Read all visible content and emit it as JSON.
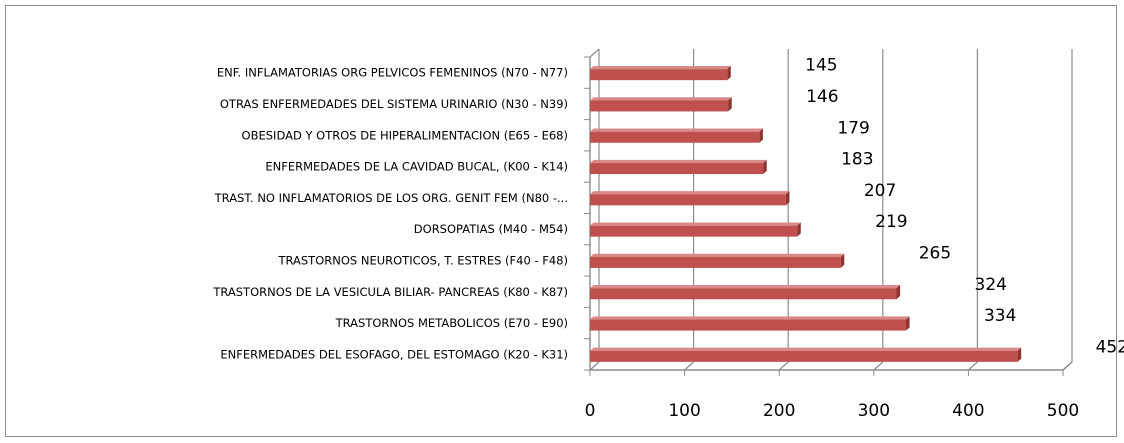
{
  "chart_data": {
    "type": "bar",
    "orientation": "horizontal",
    "categories": [
      "ENF. INFLAMATORIAS  ORG PELVICOS FEMENINOS (N70 - N77)",
      "OTRAS ENFERMEDADES DEL SISTEMA URINARIO (N30 - N39)",
      "OBESIDAD Y OTROS DE HIPERALIMENTACION (E65 - E68)",
      "ENFERMEDADES DE LA CAVIDAD BUCAL, (K00 - K14)",
      "TRAST. NO INFLAMATORIOS DE LOS ORG. GENIT FEM (N80 -...",
      "DORSOPATIAS (M40 - M54)",
      "TRASTORNOS NEUROTICOS, T. ESTRES (F40 - F48)",
      "TRASTORNOS DE LA VESICULA BILIAR- PANCREAS (K80 - K87)",
      "TRASTORNOS METABOLICOS (E70 - E90)",
      "ENFERMEDADES DEL ESOFAGO, DEL ESTOMAGO (K20 - K31)"
    ],
    "values": [
      145,
      146,
      179,
      183,
      207,
      219,
      265,
      324,
      334,
      452
    ],
    "data_labels": [
      "145",
      "146",
      "179",
      "183",
      "207",
      "219",
      "265",
      "324",
      "334",
      "452"
    ],
    "xlim": [
      0,
      500
    ],
    "x_ticks": [
      "0",
      "100",
      "200",
      "300",
      "400",
      "500"
    ],
    "grid": "vertical",
    "legend": "none",
    "title": "",
    "xlabel": "",
    "ylabel": "",
    "bar_color": "#c0504d",
    "bar_top_color": "#d88a88",
    "bar_side_color": "#8e3532",
    "grid_color": "#8c8c8c"
  }
}
